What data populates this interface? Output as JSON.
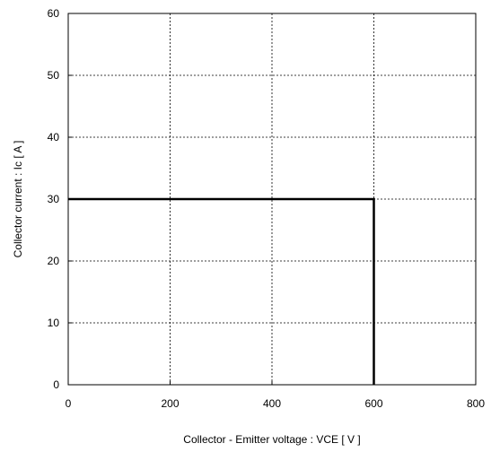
{
  "chart_data": {
    "type": "line",
    "title": "",
    "xlabel": "Collector - Emitter voltage  :  VCE  [ V ]",
    "ylabel": "Collector current  :  Ic  [ A ]",
    "xlim": [
      0,
      800
    ],
    "ylim": [
      0,
      60
    ],
    "xticks": [
      0,
      200,
      400,
      600,
      800
    ],
    "yticks": [
      0,
      10,
      20,
      30,
      40,
      50,
      60
    ],
    "xtick_labels": [
      "0",
      "200",
      "400",
      "600",
      "800"
    ],
    "ytick_labels": [
      "0",
      "10",
      "20",
      "30",
      "40",
      "50",
      "60"
    ],
    "grid": true,
    "grid_style": "dotted",
    "series": [
      {
        "color": "#000000",
        "x": [
          0,
          600,
          600
        ],
        "y": [
          30,
          30,
          0
        ]
      }
    ]
  }
}
